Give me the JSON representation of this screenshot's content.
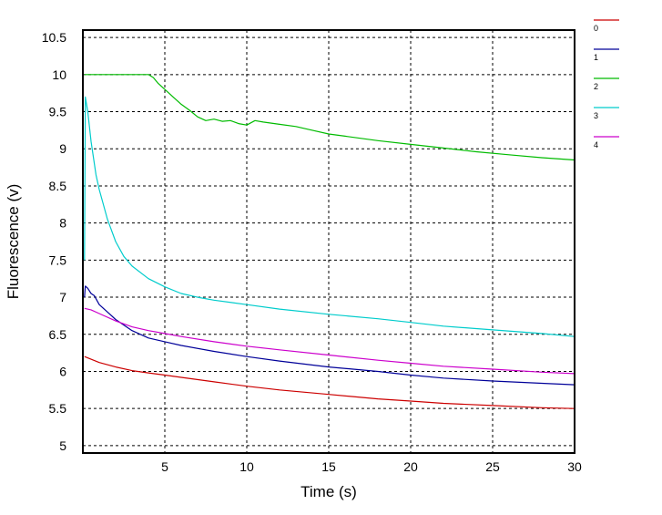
{
  "chart_data": {
    "type": "line",
    "title": "",
    "xlabel": "Time (s)",
    "ylabel": "Fluorescence (v)",
    "xlim": [
      0,
      30
    ],
    "ylim": [
      4.9,
      10.6
    ],
    "xticks": [
      5,
      10,
      15,
      20,
      25,
      30
    ],
    "yticks": [
      5,
      5.5,
      6,
      6.5,
      7,
      7.5,
      8,
      8.5,
      9,
      9.5,
      10,
      10.5
    ],
    "grid": true,
    "legend_position": "right",
    "series": [
      {
        "name": "0",
        "color": "#cc0000",
        "points": [
          [
            0.1,
            6.2
          ],
          [
            1,
            6.12
          ],
          [
            2,
            6.06
          ],
          [
            3,
            6.01
          ],
          [
            4,
            5.98
          ],
          [
            5,
            5.95
          ],
          [
            6,
            5.92
          ],
          [
            8,
            5.86
          ],
          [
            10,
            5.8
          ],
          [
            12,
            5.75
          ],
          [
            15,
            5.69
          ],
          [
            18,
            5.63
          ],
          [
            20,
            5.6
          ],
          [
            22,
            5.57
          ],
          [
            25,
            5.54
          ],
          [
            28,
            5.51
          ],
          [
            30,
            5.5
          ]
        ]
      },
      {
        "name": "1",
        "color": "#000099",
        "points": [
          [
            0.1,
            7.0
          ],
          [
            0.15,
            7.15
          ],
          [
            0.3,
            7.12
          ],
          [
            0.5,
            7.05
          ],
          [
            0.7,
            7.02
          ],
          [
            1,
            6.9
          ],
          [
            1.5,
            6.8
          ],
          [
            2,
            6.7
          ],
          [
            3,
            6.55
          ],
          [
            4,
            6.45
          ],
          [
            5,
            6.4
          ],
          [
            6,
            6.35
          ],
          [
            8,
            6.27
          ],
          [
            10,
            6.2
          ],
          [
            12,
            6.14
          ],
          [
            15,
            6.06
          ],
          [
            18,
            6.0
          ],
          [
            20,
            5.95
          ],
          [
            22,
            5.91
          ],
          [
            25,
            5.87
          ],
          [
            28,
            5.84
          ],
          [
            30,
            5.82
          ]
        ]
      },
      {
        "name": "2",
        "color": "#00bb00",
        "points": [
          [
            0.1,
            10.0
          ],
          [
            1,
            10.0
          ],
          [
            2,
            10.0
          ],
          [
            3,
            10.0
          ],
          [
            4,
            10.0
          ],
          [
            4.3,
            9.96
          ],
          [
            4.6,
            9.88
          ],
          [
            5,
            9.8
          ],
          [
            5.5,
            9.7
          ],
          [
            6,
            9.6
          ],
          [
            6.5,
            9.52
          ],
          [
            7,
            9.43
          ],
          [
            7.5,
            9.38
          ],
          [
            8,
            9.4
          ],
          [
            8.5,
            9.37
          ],
          [
            9,
            9.38
          ],
          [
            9.5,
            9.34
          ],
          [
            10,
            9.32
          ],
          [
            10.5,
            9.38
          ],
          [
            11,
            9.36
          ],
          [
            12,
            9.33
          ],
          [
            13,
            9.3
          ],
          [
            14,
            9.25
          ],
          [
            15,
            9.2
          ],
          [
            16,
            9.17
          ],
          [
            18,
            9.11
          ],
          [
            20,
            9.06
          ],
          [
            22,
            9.01
          ],
          [
            24,
            8.96
          ],
          [
            26,
            8.92
          ],
          [
            28,
            8.88
          ],
          [
            30,
            8.85
          ]
        ]
      },
      {
        "name": "3",
        "color": "#00cccc",
        "points": [
          [
            0.1,
            7.5
          ],
          [
            0.15,
            9.7
          ],
          [
            0.3,
            9.5
          ],
          [
            0.5,
            9.1
          ],
          [
            0.8,
            8.65
          ],
          [
            1,
            8.45
          ],
          [
            1.5,
            8.05
          ],
          [
            2,
            7.75
          ],
          [
            2.5,
            7.55
          ],
          [
            3,
            7.42
          ],
          [
            4,
            7.25
          ],
          [
            5,
            7.14
          ],
          [
            6,
            7.05
          ],
          [
            7,
            7.0
          ],
          [
            8,
            6.96
          ],
          [
            10,
            6.9
          ],
          [
            12,
            6.84
          ],
          [
            15,
            6.77
          ],
          [
            18,
            6.71
          ],
          [
            20,
            6.66
          ],
          [
            22,
            6.61
          ],
          [
            25,
            6.56
          ],
          [
            28,
            6.51
          ],
          [
            30,
            6.47
          ]
        ]
      },
      {
        "name": "4",
        "color": "#cc00cc",
        "points": [
          [
            0.1,
            6.85
          ],
          [
            0.5,
            6.83
          ],
          [
            1,
            6.78
          ],
          [
            2,
            6.68
          ],
          [
            3,
            6.6
          ],
          [
            4,
            6.55
          ],
          [
            5,
            6.51
          ],
          [
            6,
            6.47
          ],
          [
            8,
            6.4
          ],
          [
            10,
            6.34
          ],
          [
            12,
            6.29
          ],
          [
            15,
            6.22
          ],
          [
            18,
            6.15
          ],
          [
            20,
            6.11
          ],
          [
            22,
            6.07
          ],
          [
            25,
            6.03
          ],
          [
            28,
            5.99
          ],
          [
            30,
            5.97
          ]
        ]
      }
    ]
  }
}
